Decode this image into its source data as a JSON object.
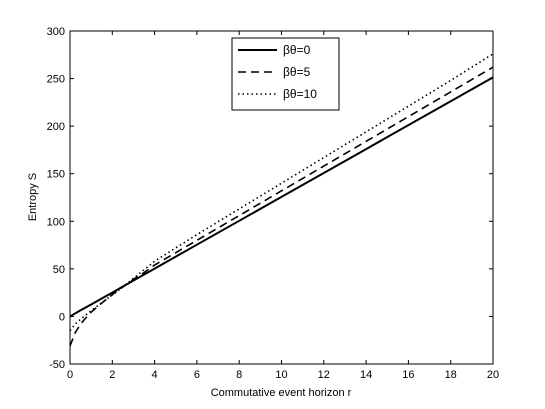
{
  "chart_data": {
    "type": "line",
    "title": "",
    "xlabel": "Commutative event horizon r",
    "ylabel": "Entropy S",
    "xlim": [
      0,
      20
    ],
    "ylim": [
      -50,
      300
    ],
    "xticks": [
      0,
      2,
      4,
      6,
      8,
      10,
      12,
      14,
      16,
      18,
      20
    ],
    "yticks": [
      -50,
      0,
      50,
      100,
      150,
      200,
      250,
      300
    ],
    "grid": false,
    "legend_position": "top-center",
    "series": [
      {
        "name": "βθ=0",
        "style": "solid",
        "color": "#000000",
        "x": [
          0,
          0.5,
          1,
          1.5,
          2,
          2.5,
          3,
          4,
          6,
          8,
          10,
          12,
          14,
          16,
          18,
          20
        ],
        "y": [
          0,
          6.5,
          12.5,
          18.8,
          25,
          31.4,
          37.7,
          50.3,
          75.4,
          100.5,
          125.7,
          150.8,
          175.9,
          201.1,
          226.2,
          251.3
        ]
      },
      {
        "name": "βθ=5",
        "style": "dashed",
        "color": "#000000",
        "x": [
          0,
          0.25,
          0.5,
          0.75,
          1,
          1.5,
          2,
          2.5,
          3,
          3.5,
          4,
          6,
          8,
          10,
          12,
          14,
          16,
          18,
          20
        ],
        "y": [
          -31,
          -17,
          -8,
          -1.5,
          4.5,
          14,
          23,
          31,
          39,
          46,
          54,
          80,
          106,
          132,
          158,
          184,
          210,
          236,
          262
        ]
      },
      {
        "name": "βθ=10",
        "style": "dotted",
        "color": "#000000",
        "x": [
          0,
          0.25,
          0.5,
          0.75,
          1,
          1.5,
          2,
          2.5,
          3,
          3.5,
          4,
          6,
          8,
          10,
          12,
          14,
          16,
          18,
          20
        ],
        "y": [
          -15,
          -8,
          -3,
          1.5,
          6,
          14.5,
          22.5,
          31,
          40,
          49,
          58,
          86,
          113,
          140,
          167,
          194,
          221,
          248,
          276
        ]
      }
    ]
  }
}
